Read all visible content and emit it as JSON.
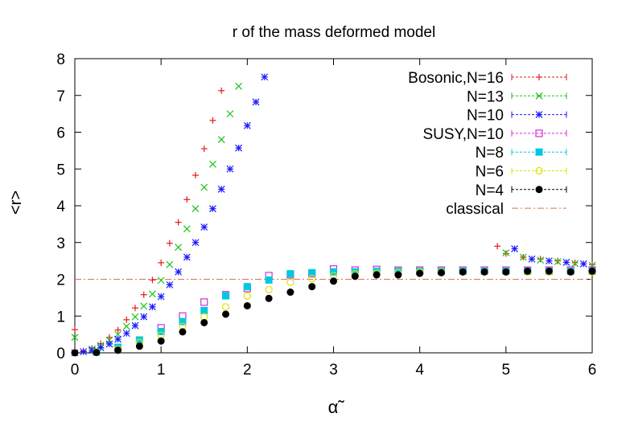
{
  "chart_data": {
    "type": "scatter",
    "title": "r of the mass deformed model",
    "xlabel": "α̃",
    "ylabel": "<r>",
    "xlim": [
      0,
      6
    ],
    "ylim": [
      0,
      8
    ],
    "x_ticks": [
      "0",
      "1",
      "2",
      "3",
      "4",
      "5",
      "6"
    ],
    "y_ticks": [
      "0",
      "1",
      "2",
      "3",
      "4",
      "5",
      "6",
      "7",
      "8"
    ],
    "legend_position": "top-right",
    "grid": false,
    "series": [
      {
        "name": "Bosonic,N=16",
        "color": "#e41a1c",
        "marker": "plus",
        "points": [
          [
            0.0,
            0.63
          ],
          [
            0.1,
            0.05
          ],
          [
            0.2,
            0.12
          ],
          [
            0.3,
            0.25
          ],
          [
            0.4,
            0.42
          ],
          [
            0.5,
            0.62
          ],
          [
            0.6,
            0.9
          ],
          [
            0.7,
            1.22
          ],
          [
            0.8,
            1.58
          ],
          [
            0.9,
            1.98
          ],
          [
            1.0,
            2.45
          ],
          [
            1.1,
            2.98
          ],
          [
            1.2,
            3.55
          ],
          [
            1.3,
            4.17
          ],
          [
            1.4,
            4.83
          ],
          [
            1.5,
            5.55
          ],
          [
            1.6,
            6.32
          ],
          [
            1.7,
            7.13
          ],
          [
            4.9,
            2.9
          ],
          [
            5.0,
            2.7
          ],
          [
            5.2,
            2.6
          ],
          [
            5.4,
            2.55
          ],
          [
            5.6,
            2.5
          ],
          [
            5.8,
            2.45
          ],
          [
            6.0,
            2.4
          ]
        ]
      },
      {
        "name": "N=13",
        "color": "#18c418",
        "marker": "cross",
        "points": [
          [
            0.0,
            0.42
          ],
          [
            0.2,
            0.1
          ],
          [
            0.3,
            0.2
          ],
          [
            0.4,
            0.34
          ],
          [
            0.5,
            0.5
          ],
          [
            0.6,
            0.72
          ],
          [
            0.7,
            0.98
          ],
          [
            0.8,
            1.27
          ],
          [
            0.9,
            1.6
          ],
          [
            1.0,
            1.97
          ],
          [
            1.1,
            2.4
          ],
          [
            1.2,
            2.87
          ],
          [
            1.3,
            3.37
          ],
          [
            1.4,
            3.92
          ],
          [
            1.5,
            4.5
          ],
          [
            1.6,
            5.13
          ],
          [
            1.7,
            5.8
          ],
          [
            1.8,
            6.5
          ],
          [
            1.9,
            7.25
          ],
          [
            5.0,
            2.72
          ],
          [
            5.2,
            2.6
          ],
          [
            5.4,
            2.52
          ],
          [
            5.6,
            2.48
          ],
          [
            5.8,
            2.43
          ],
          [
            6.0,
            2.38
          ]
        ]
      },
      {
        "name": "N=10",
        "color": "#1a1aff",
        "marker": "star",
        "points": [
          [
            0.0,
            0.0
          ],
          [
            0.1,
            0.03
          ],
          [
            0.2,
            0.07
          ],
          [
            0.3,
            0.14
          ],
          [
            0.4,
            0.24
          ],
          [
            0.5,
            0.37
          ],
          [
            0.6,
            0.53
          ],
          [
            0.7,
            0.74
          ],
          [
            0.8,
            0.98
          ],
          [
            0.9,
            1.25
          ],
          [
            1.0,
            1.53
          ],
          [
            1.1,
            1.85
          ],
          [
            1.2,
            2.2
          ],
          [
            1.3,
            2.6
          ],
          [
            1.4,
            3.0
          ],
          [
            1.5,
            3.42
          ],
          [
            1.6,
            3.92
          ],
          [
            1.7,
            4.45
          ],
          [
            1.8,
            5.0
          ],
          [
            1.9,
            5.57
          ],
          [
            2.0,
            6.18
          ],
          [
            2.1,
            6.82
          ],
          [
            2.2,
            7.5
          ],
          [
            5.1,
            2.83
          ],
          [
            5.3,
            2.55
          ],
          [
            5.5,
            2.5
          ],
          [
            5.7,
            2.46
          ],
          [
            5.9,
            2.42
          ]
        ]
      },
      {
        "name": "SUSY,N=10",
        "color": "#d030d0",
        "marker": "square-open",
        "points": [
          [
            1.0,
            0.68
          ],
          [
            1.25,
            1.0
          ],
          [
            1.5,
            1.38
          ],
          [
            1.75,
            1.58
          ],
          [
            2.0,
            1.75
          ],
          [
            2.25,
            2.1
          ],
          [
            2.5,
            2.12
          ],
          [
            2.75,
            2.15
          ],
          [
            3.0,
            2.28
          ],
          [
            3.25,
            2.25
          ],
          [
            3.5,
            2.27
          ],
          [
            3.75,
            2.25
          ],
          [
            4.0,
            2.25
          ],
          [
            4.25,
            2.25
          ],
          [
            4.5,
            2.25
          ],
          [
            4.75,
            2.25
          ],
          [
            5.0,
            2.25
          ],
          [
            5.25,
            2.25
          ],
          [
            5.5,
            2.25
          ],
          [
            5.75,
            2.25
          ],
          [
            6.0,
            2.25
          ]
        ]
      },
      {
        "name": "N=8",
        "color": "#00c8e0",
        "marker": "square-filled",
        "points": [
          [
            0.25,
            0.02
          ],
          [
            0.5,
            0.15
          ],
          [
            0.75,
            0.35
          ],
          [
            1.0,
            0.58
          ],
          [
            1.25,
            0.85
          ],
          [
            1.5,
            1.15
          ],
          [
            1.75,
            1.55
          ],
          [
            2.0,
            1.8
          ],
          [
            2.25,
            1.98
          ],
          [
            2.5,
            2.15
          ],
          [
            2.75,
            2.18
          ],
          [
            3.0,
            2.2
          ],
          [
            3.25,
            2.2
          ],
          [
            3.5,
            2.22
          ],
          [
            3.75,
            2.22
          ],
          [
            4.0,
            2.22
          ],
          [
            4.25,
            2.22
          ],
          [
            4.5,
            2.22
          ],
          [
            4.75,
            2.22
          ],
          [
            5.0,
            2.22
          ],
          [
            5.25,
            2.22
          ],
          [
            5.5,
            2.22
          ],
          [
            5.75,
            2.22
          ],
          [
            6.0,
            2.22
          ]
        ]
      },
      {
        "name": "N=6",
        "color": "#e0e000",
        "marker": "circle-open",
        "points": [
          [
            0.25,
            0.02
          ],
          [
            0.5,
            0.1
          ],
          [
            0.75,
            0.28
          ],
          [
            1.0,
            0.48
          ],
          [
            1.25,
            0.72
          ],
          [
            1.5,
            0.98
          ],
          [
            1.75,
            1.25
          ],
          [
            2.0,
            1.55
          ],
          [
            2.25,
            1.72
          ],
          [
            2.5,
            1.92
          ],
          [
            2.75,
            2.02
          ],
          [
            3.0,
            2.1
          ],
          [
            3.25,
            2.15
          ],
          [
            3.5,
            2.17
          ],
          [
            3.75,
            2.18
          ],
          [
            4.0,
            2.2
          ],
          [
            4.25,
            2.2
          ],
          [
            4.5,
            2.2
          ],
          [
            4.75,
            2.2
          ],
          [
            5.0,
            2.2
          ],
          [
            5.25,
            2.2
          ],
          [
            5.5,
            2.2
          ],
          [
            5.75,
            2.2
          ],
          [
            6.0,
            2.2
          ]
        ]
      },
      {
        "name": "N=4",
        "color": "#000000",
        "marker": "circle-filled",
        "points": [
          [
            0.0,
            0.0
          ],
          [
            0.25,
            0.01
          ],
          [
            0.5,
            0.07
          ],
          [
            0.75,
            0.18
          ],
          [
            1.0,
            0.32
          ],
          [
            1.25,
            0.57
          ],
          [
            1.5,
            0.82
          ],
          [
            1.75,
            1.05
          ],
          [
            2.0,
            1.28
          ],
          [
            2.25,
            1.48
          ],
          [
            2.5,
            1.65
          ],
          [
            2.75,
            1.8
          ],
          [
            3.0,
            1.95
          ],
          [
            3.25,
            2.08
          ],
          [
            3.5,
            2.12
          ],
          [
            3.75,
            2.12
          ],
          [
            4.0,
            2.16
          ],
          [
            4.25,
            2.18
          ],
          [
            4.5,
            2.2
          ],
          [
            4.75,
            2.2
          ],
          [
            5.0,
            2.2
          ],
          [
            5.25,
            2.22
          ],
          [
            5.5,
            2.22
          ],
          [
            5.75,
            2.2
          ],
          [
            6.0,
            2.22
          ]
        ]
      },
      {
        "name": "classical",
        "color": "#e07050",
        "marker": "line",
        "value": 2.0
      }
    ]
  }
}
